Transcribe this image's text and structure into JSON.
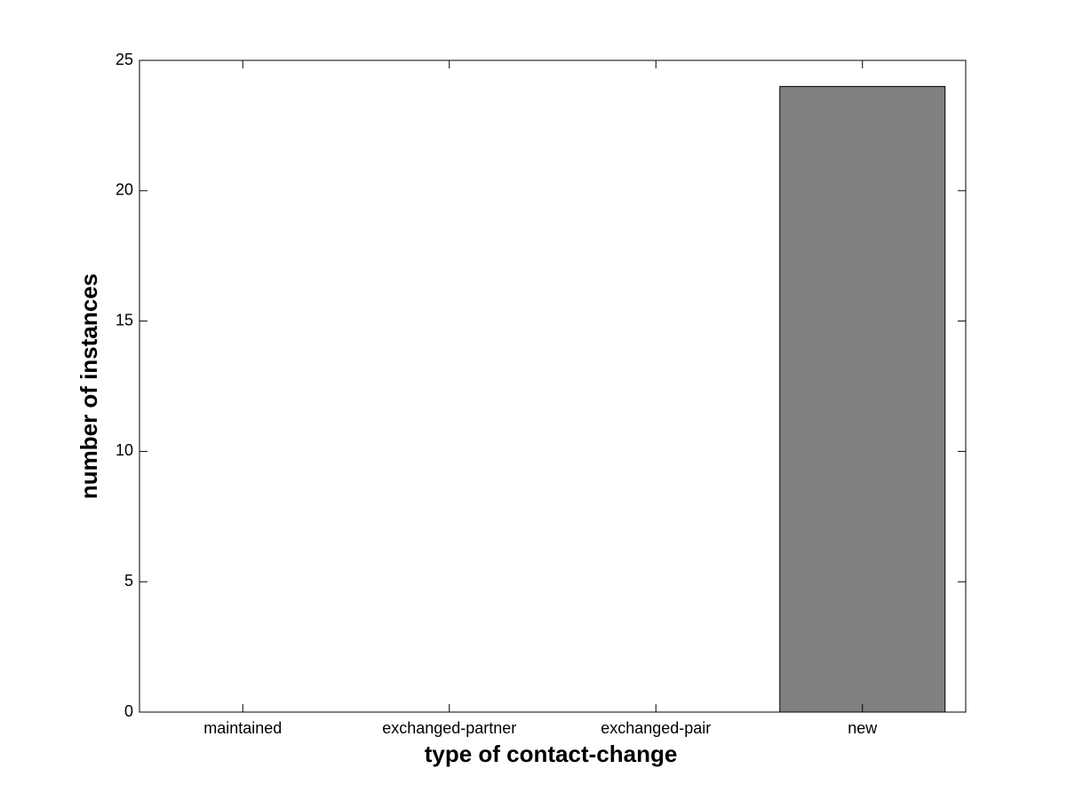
{
  "chart_data": {
    "type": "bar",
    "x_label": "type of contact-change",
    "y_label": "number of instances",
    "categories": [
      "maintained",
      "exchanged-partner",
      "exchanged-pair",
      "new"
    ],
    "values": [
      0,
      0,
      0,
      24
    ],
    "color": "#808080",
    "ylim": [
      0,
      25
    ],
    "yticks": [
      0,
      5,
      10,
      15,
      20,
      25
    ],
    "grid": false
  }
}
